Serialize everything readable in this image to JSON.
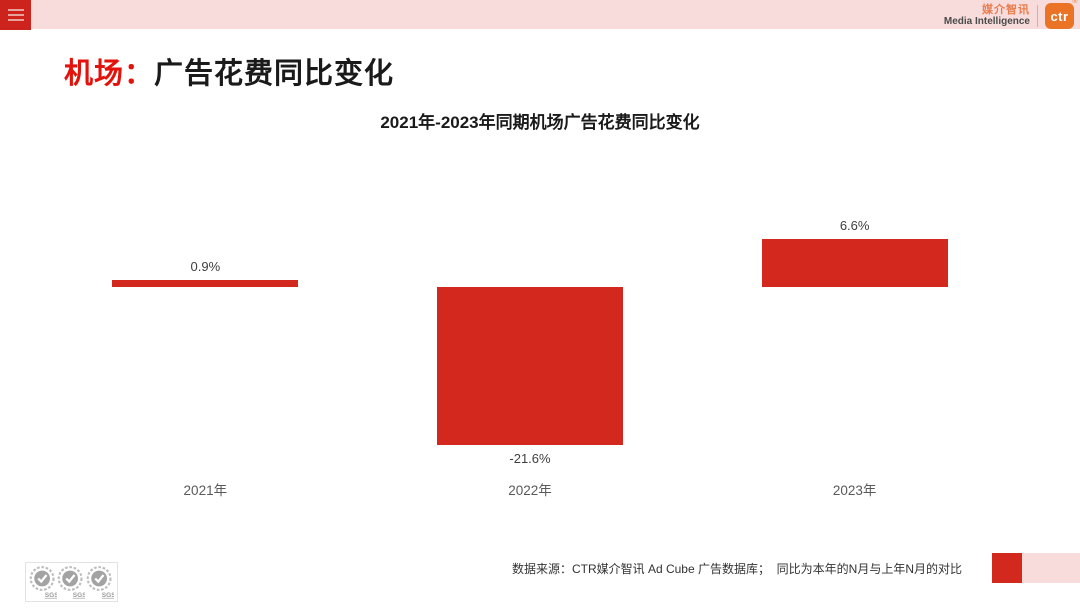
{
  "header": {
    "menu_icon": "hamburger-icon",
    "brand": {
      "name_cn": "媒介智讯",
      "name_en": "Media Intelligence",
      "logo_text": "ctr",
      "registered_mark": "®"
    }
  },
  "page_title": {
    "highlight": "机场：",
    "rest": "广告花费同比变化"
  },
  "chart_data": {
    "type": "bar",
    "title": "2021年-2023年同期机场广告花费同比变化",
    "categories": [
      "2021年",
      "2022年",
      "2023年"
    ],
    "values": [
      0.9,
      -21.6,
      6.6
    ],
    "value_labels": [
      "0.9%",
      "-21.6%",
      "6.6%"
    ],
    "xlabel": "",
    "ylabel": "",
    "ylim": [
      -25,
      10
    ],
    "baseline": 0,
    "grid": false,
    "legend_position": "none",
    "bar_color": "#d2281e",
    "axis_visible": false
  },
  "footer": {
    "source_text": "数据来源：CTR媒介智讯 Ad Cube 广告数据库；  同比为本年的N月与上年N月的对比",
    "legend_swatches": [
      {
        "name": "solid-red",
        "color": "#d2281e"
      },
      {
        "name": "light-pink",
        "color": "#f8dcdb"
      }
    ],
    "certification_logo": "SGS"
  },
  "colors": {
    "accent_red": "#e3120b",
    "bar_red": "#d2281e",
    "strip_pink": "#f8dcdb",
    "brand_orange": "#ea7326"
  }
}
